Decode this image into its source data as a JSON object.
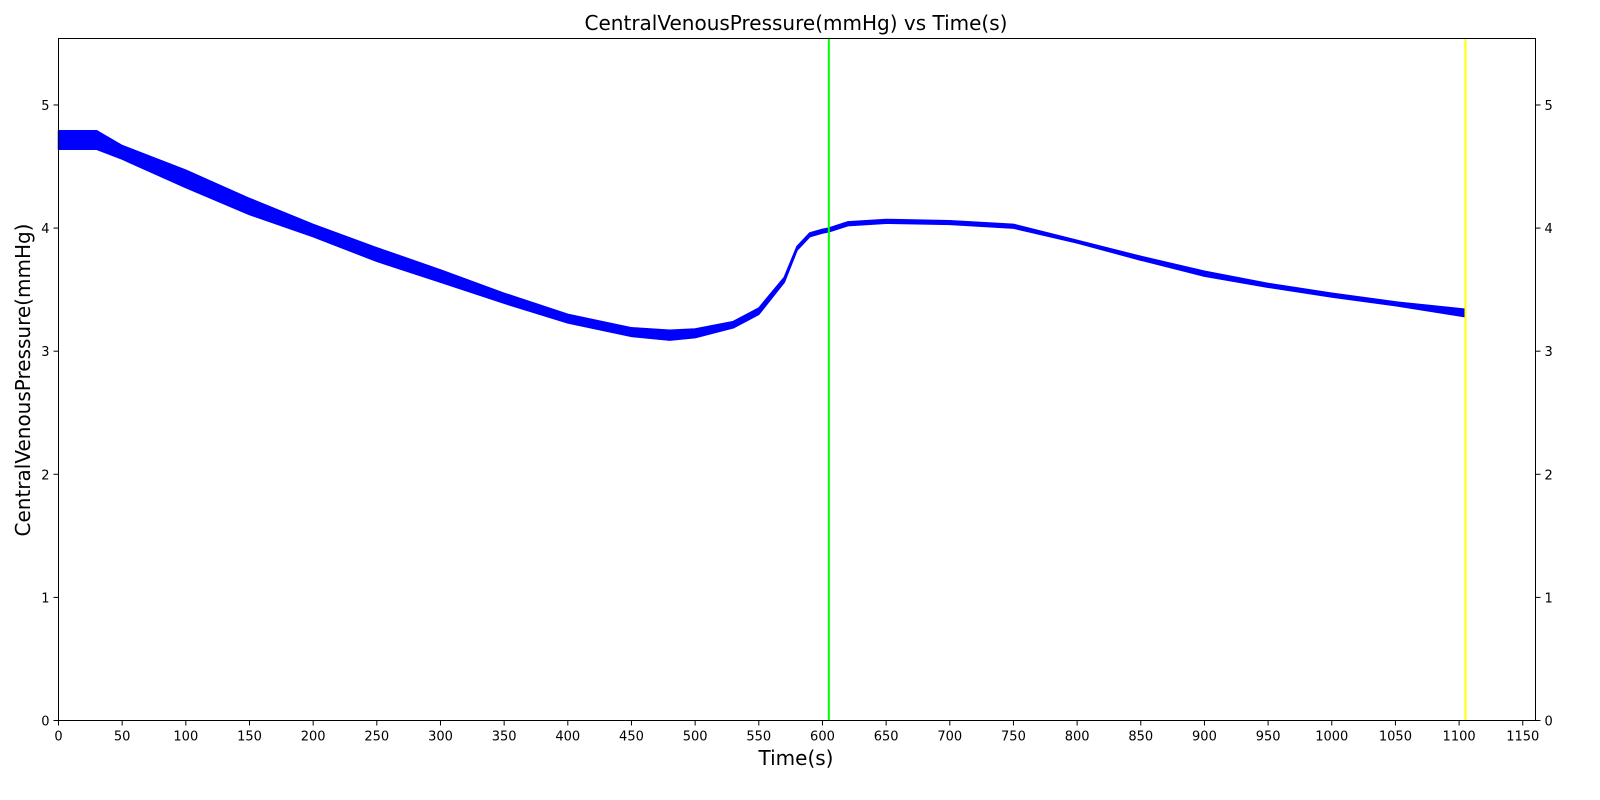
{
  "chart_data": {
    "type": "line",
    "title": "CentralVenousPressure(mmHg) vs Time(s)",
    "xlabel": "Time(s)",
    "ylabel": "CentralVenousPressure(mmHg)",
    "xlim": [
      0,
      1160
    ],
    "ylim": [
      0,
      5.54
    ],
    "xticks": [
      0,
      50,
      100,
      150,
      200,
      250,
      300,
      350,
      400,
      450,
      500,
      550,
      600,
      650,
      700,
      750,
      800,
      850,
      900,
      950,
      1000,
      1050,
      1100,
      1150
    ],
    "yticks": [
      0,
      1,
      2,
      3,
      4,
      5
    ],
    "right_axis_ticks": [
      0,
      1,
      2,
      3,
      4,
      5
    ],
    "grid": false,
    "series": [
      {
        "color": "#0000ff",
        "x": [
          0,
          30,
          50,
          100,
          150,
          200,
          250,
          300,
          350,
          400,
          450,
          480,
          500,
          530,
          550,
          570,
          580,
          590,
          600,
          605,
          620,
          650,
          700,
          750,
          800,
          850,
          900,
          950,
          1000,
          1050,
          1105
        ],
        "y_upper": [
          4.79,
          4.79,
          4.67,
          4.47,
          4.24,
          4.03,
          3.84,
          3.66,
          3.47,
          3.3,
          3.19,
          3.17,
          3.18,
          3.24,
          3.35,
          3.6,
          3.85,
          3.96,
          3.99,
          4.0,
          4.05,
          4.07,
          4.06,
          4.03,
          3.9,
          3.77,
          3.65,
          3.55,
          3.47,
          3.4,
          3.34
        ],
        "y_lower": [
          4.64,
          4.64,
          4.56,
          4.33,
          4.11,
          3.93,
          3.73,
          3.56,
          3.39,
          3.23,
          3.12,
          3.09,
          3.11,
          3.19,
          3.3,
          3.56,
          3.82,
          3.93,
          3.96,
          3.97,
          4.02,
          4.04,
          4.03,
          4.0,
          3.88,
          3.74,
          3.61,
          3.52,
          3.44,
          3.37,
          3.28
        ]
      }
    ],
    "vlines": [
      {
        "x": 605,
        "color": "#00ff00"
      },
      {
        "x": 1105,
        "color": "#ffff00"
      }
    ]
  }
}
